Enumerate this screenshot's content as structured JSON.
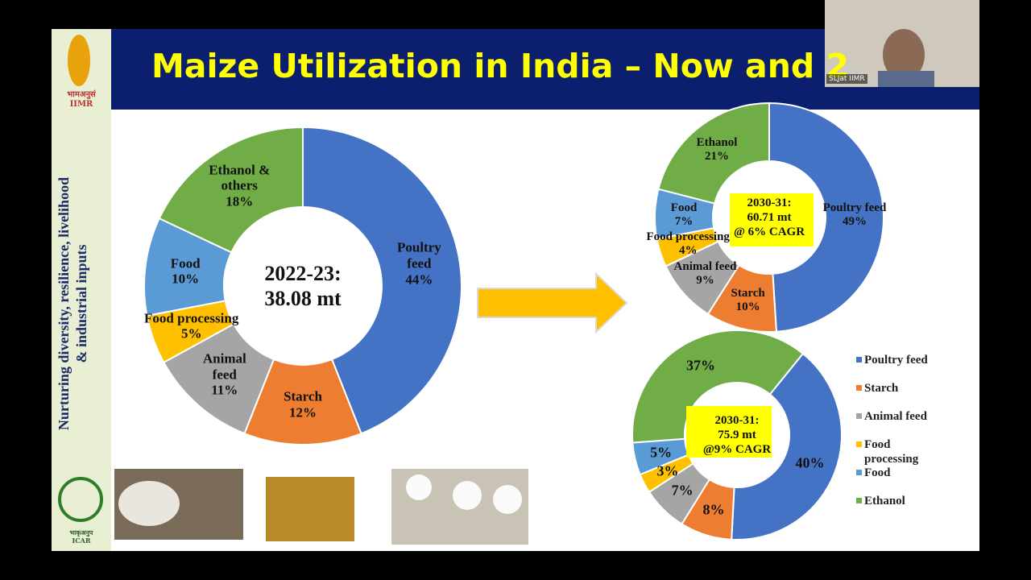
{
  "slide": {
    "title": "Maize Utilization in India – Now and 2",
    "side_text": [
      "Nurturing diversity, resilience, livelihood",
      "& industrial inputs"
    ],
    "logo_top": [
      "भामअनुसं",
      "IIMR"
    ],
    "logo_bottom": [
      "भाकृअनुप",
      "ICAR"
    ],
    "webcam_label": "SLJat IIMR"
  },
  "chart_data": [
    {
      "type": "donut",
      "center_label": "2022-23:\n38.08 mt",
      "categories": [
        "Poultry feed",
        "Starch",
        "Animal feed",
        "Food processing",
        "Food",
        "Ethanol & others"
      ],
      "values": [
        44,
        12,
        11,
        5,
        10,
        18
      ],
      "value_labels": [
        "44%",
        "12%",
        "11%",
        "5%",
        "10%",
        "18%"
      ],
      "colors": [
        "#4472c4",
        "#ed7d31",
        "#a5a5a5",
        "#ffc000",
        "#5b9bd5",
        "#70ad47"
      ]
    },
    {
      "type": "donut",
      "center_label": "2030-31:\n60.71 mt\n@ 6% CAGR",
      "categories": [
        "Poultry feed",
        "Starch",
        "Animal feed",
        "Food processing",
        "Food",
        "Ethanol"
      ],
      "values": [
        49,
        10,
        9,
        4,
        7,
        21
      ],
      "value_labels": [
        "49%",
        "10%",
        "9%",
        "4%",
        "7%",
        "21%"
      ],
      "colors": [
        "#4472c4",
        "#ed7d31",
        "#a5a5a5",
        "#ffc000",
        "#5b9bd5",
        "#70ad47"
      ]
    },
    {
      "type": "donut",
      "center_label": "2030-31:\n75.9 mt\n@9% CAGR",
      "legend": "right",
      "categories": [
        "Poultry feed",
        "Starch",
        "Animal feed",
        "Food processing",
        "Food",
        "Ethanol"
      ],
      "values": [
        40,
        8,
        7,
        3,
        5,
        37
      ],
      "value_labels": [
        "40%",
        "8%",
        "7%",
        "3%",
        "5%",
        "37%"
      ],
      "colors": [
        "#4472c4",
        "#ed7d31",
        "#a5a5a5",
        "#ffc000",
        "#5b9bd5",
        "#70ad47"
      ]
    }
  ]
}
